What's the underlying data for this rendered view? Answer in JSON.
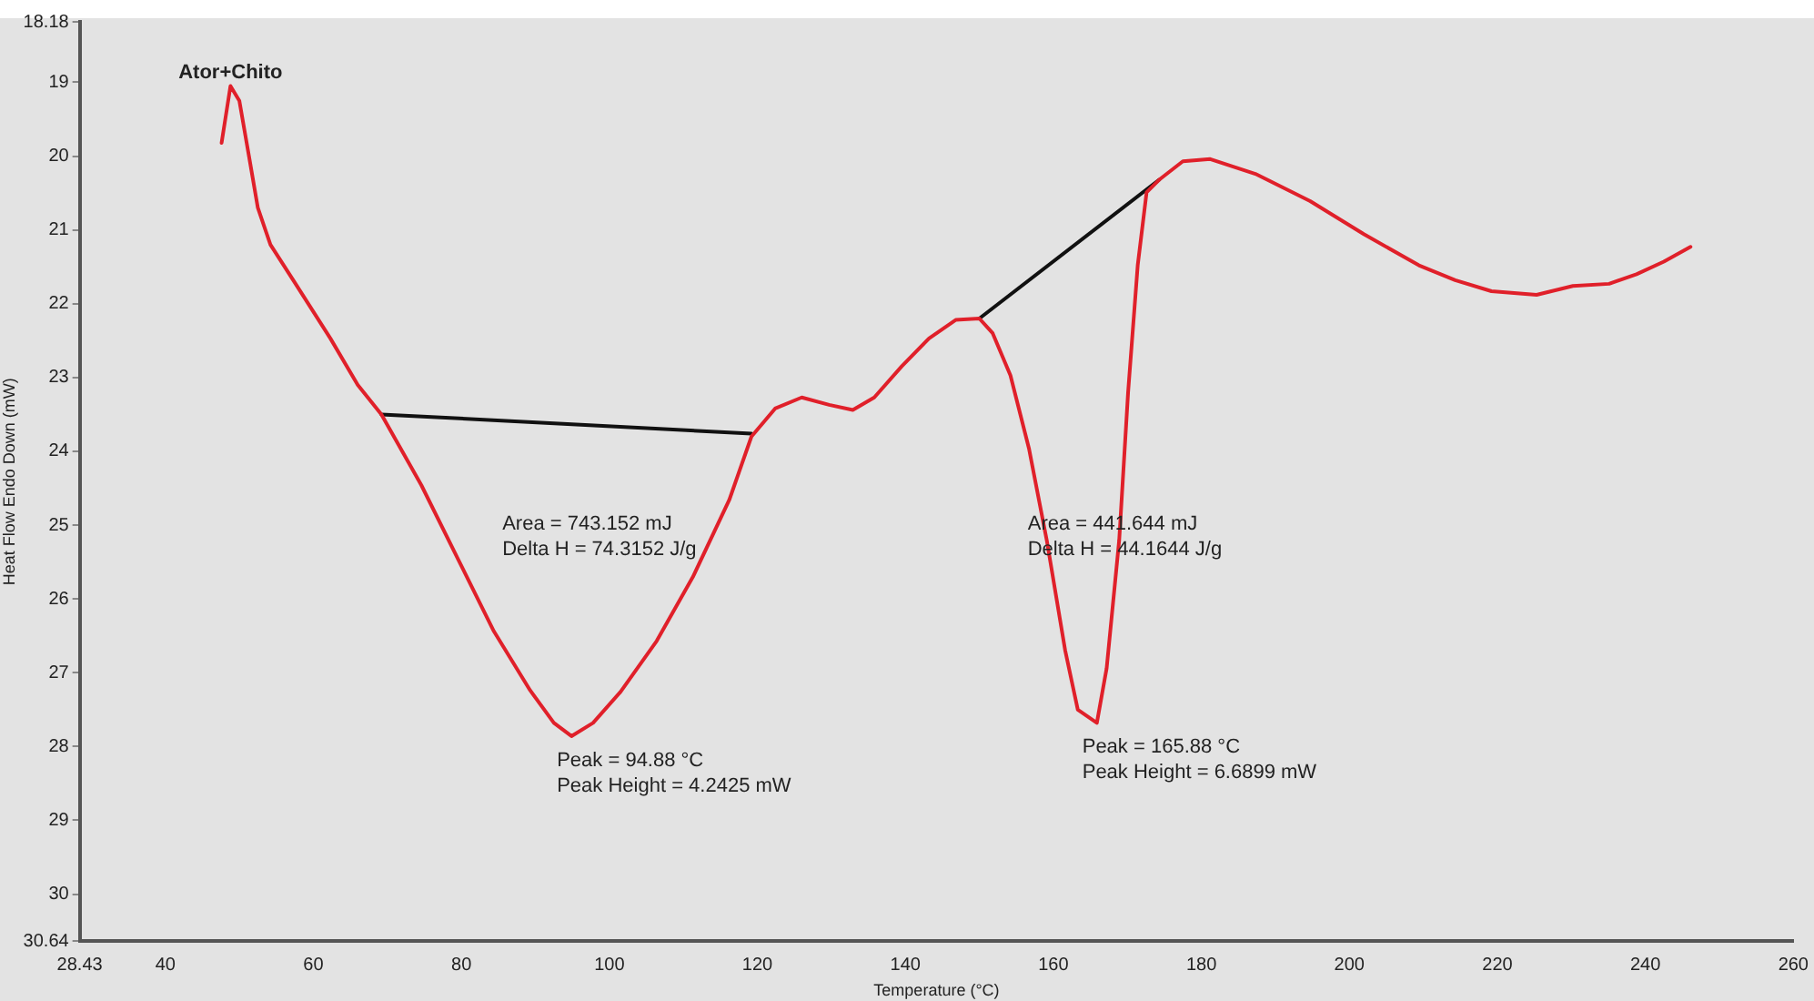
{
  "chart_data": {
    "type": "line",
    "xlabel": "Temperature (°C)",
    "ylabel": "Heat Flow Endo Down (mW)",
    "xlim": [
      28.43,
      260
    ],
    "xticks": [
      28.43,
      40,
      60,
      80,
      100,
      120,
      140,
      160,
      180,
      200,
      220,
      240,
      260
    ],
    "ylim": [
      30.64,
      18.18
    ],
    "yticks": [
      18.18,
      19,
      20,
      21,
      22,
      23,
      24,
      25,
      26,
      27,
      28,
      29,
      30,
      30.64
    ],
    "grid": false,
    "legend": false,
    "line_style": "solid",
    "series": [
      {
        "name": "Ator+Chito",
        "color": "#e0202a",
        "x": [
          47.6,
          48.8,
          50.0,
          51.3,
          52.5,
          54.2,
          57.4,
          62.3,
          66.0,
          69.2,
          74.6,
          79.5,
          84.4,
          89.3,
          92.5,
          94.88,
          97.8,
          101.5,
          106.4,
          111.3,
          116.2,
          119.2,
          122.4,
          126.0,
          129.7,
          132.9,
          135.8,
          139.5,
          143.2,
          146.8,
          150.0,
          151.8,
          154.2,
          156.7,
          159.1,
          161.6,
          163.3,
          165.88,
          167.2,
          168.9,
          170.1,
          171.4,
          172.6,
          174.3,
          177.5,
          181.2,
          187.3,
          194.7,
          202.0,
          209.4,
          214.3,
          219.2,
          225.3,
          230.2,
          235.1,
          238.8,
          242.5,
          246.1
        ],
        "values": [
          19.82,
          19.05,
          19.25,
          20.0,
          20.7,
          21.2,
          21.7,
          22.47,
          23.1,
          23.5,
          24.46,
          25.45,
          26.44,
          27.24,
          27.68,
          27.86,
          27.68,
          27.26,
          26.57,
          25.7,
          24.66,
          23.8,
          23.42,
          23.27,
          23.37,
          23.44,
          23.27,
          22.85,
          22.47,
          22.22,
          22.2,
          22.4,
          22.97,
          23.96,
          25.2,
          26.7,
          27.5,
          27.68,
          26.94,
          25.2,
          23.2,
          21.48,
          20.49,
          20.32,
          20.07,
          20.04,
          20.24,
          20.61,
          21.06,
          21.48,
          21.68,
          21.83,
          21.88,
          21.76,
          21.73,
          21.6,
          21.43,
          21.23
        ]
      },
      {
        "color": "#111111",
        "x": [
          69.2,
          119.2
        ],
        "values": [
          23.5,
          23.76
        ]
      },
      {
        "color": "#111111",
        "x": [
          150.0,
          174.3
        ],
        "values": [
          22.2,
          20.32
        ]
      }
    ],
    "annotations": [
      "Area = 743.152 mJ\nDelta H = 74.3152 J/g",
      {
        "text": "Peak = 94.88 °C\nPeak Height = 4.2425 mW",
        "x": 94.88,
        "y": 27.86
      },
      "Area = 441.644 mJ\nDelta H = 44.1644 J/g",
      {
        "text": "Peak = 165.88 °C\nPeak Height = 6.6899 mW",
        "x": 165.88,
        "y": 27.68
      }
    ]
  }
}
